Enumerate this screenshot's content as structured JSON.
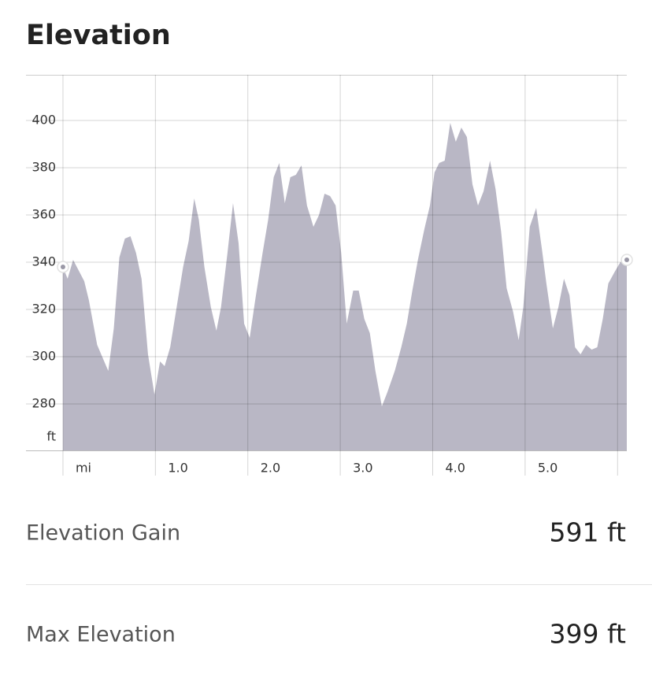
{
  "chart_data": {
    "type": "area",
    "title": "Elevation",
    "y_label": "ft",
    "color": "#b9b7c5",
    "grid": true,
    "x": [
      0,
      0.05,
      0.11,
      0.23,
      0.28,
      0.37,
      0.49,
      0.55,
      0.61,
      0.67,
      0.73,
      0.79,
      0.85,
      0.92,
      0.99,
      1.05,
      1.1,
      1.16,
      1.23,
      1.3,
      1.36,
      1.42,
      1.47,
      1.53,
      1.6,
      1.66,
      1.71,
      1.78,
      1.84,
      1.9,
      1.96,
      2.02,
      2.08,
      2.16,
      2.22,
      2.28,
      2.34,
      2.4,
      2.46,
      2.52,
      2.58,
      2.64,
      2.71,
      2.77,
      2.83,
      2.89,
      2.95,
      3.01,
      3.07,
      3.14,
      3.2,
      3.26,
      3.32,
      3.38,
      3.45,
      3.51,
      3.59,
      3.66,
      3.72,
      3.78,
      3.84,
      3.91,
      3.97,
      4.02,
      4.07,
      4.13,
      4.19,
      4.25,
      4.31,
      4.37,
      4.43,
      4.49,
      4.55,
      4.62,
      4.68,
      4.74,
      4.8,
      4.87,
      4.93,
      4.98,
      5.05,
      5.12,
      5.18,
      5.23,
      5.3,
      5.36,
      5.42,
      5.48,
      5.54,
      5.6,
      5.66,
      5.72,
      5.78,
      5.84,
      5.9,
      5.97,
      6.03,
      6.1
    ],
    "values": [
      338,
      333,
      341,
      332,
      324,
      305,
      294,
      312,
      342,
      350,
      351,
      344,
      333,
      301,
      284,
      298,
      296,
      304,
      321,
      338,
      349,
      367,
      358,
      338,
      321,
      311,
      321,
      344,
      365,
      348,
      314,
      308,
      324,
      344,
      358,
      376,
      382,
      365,
      376,
      377,
      381,
      364,
      355,
      360,
      369,
      368,
      364,
      344,
      314,
      328,
      328,
      316,
      310,
      294,
      279,
      285,
      294,
      304,
      314,
      328,
      341,
      354,
      364,
      378,
      382,
      383,
      399,
      391,
      397,
      393,
      373,
      364,
      370,
      383,
      371,
      353,
      329,
      319,
      307,
      321,
      355,
      363,
      346,
      331,
      312,
      321,
      333,
      326,
      304,
      301,
      305,
      303,
      304,
      316,
      331,
      336,
      340,
      341
    ],
    "xlim": [
      -0.4,
      6.1
    ],
    "ylim": [
      260,
      420
    ],
    "yticks": [
      280,
      300,
      320,
      340,
      360,
      380,
      400
    ],
    "xticks": [
      {
        "value": 0,
        "label": "mi"
      },
      {
        "value": 1,
        "label": "1.0"
      },
      {
        "value": 2,
        "label": "2.0"
      },
      {
        "value": 3,
        "label": "3.0"
      },
      {
        "value": 4,
        "label": "4.0"
      },
      {
        "value": 5,
        "label": "5.0"
      },
      {
        "value": 6,
        "label": null
      }
    ]
  },
  "stats": [
    {
      "label": "Elevation Gain",
      "value": "591 ft"
    },
    {
      "label": "Max Elevation",
      "value": "399 ft"
    }
  ]
}
